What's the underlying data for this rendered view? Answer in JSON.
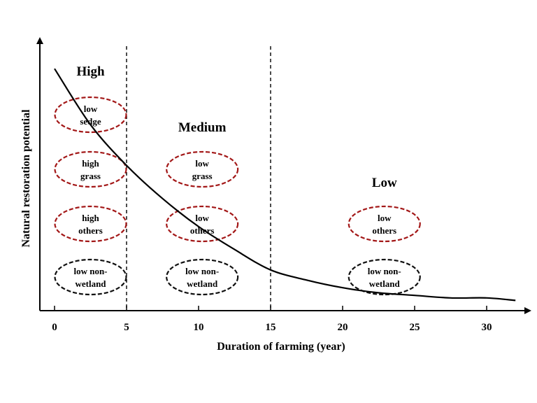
{
  "chart_data": {
    "type": "line",
    "xlabel": "Duration of farming (year)",
    "ylabel": "Natural restoration potential",
    "x_ticks": [
      "0",
      "5",
      "10",
      "15",
      "20",
      "25",
      "30"
    ],
    "boundaries": [
      5,
      15
    ],
    "zones": [
      {
        "label": "High",
        "x_center": 2.5
      },
      {
        "label": "Medium",
        "x_center": 10.25
      },
      {
        "label": "Low",
        "x_center": 22.9
      }
    ],
    "curve": {
      "x": [
        0,
        2.5,
        5,
        7.5,
        10,
        12.5,
        15,
        17.5,
        20,
        22.5,
        25,
        27.5,
        30,
        32
      ],
      "y": [
        0.95,
        0.73,
        0.57,
        0.44,
        0.33,
        0.24,
        0.16,
        0.12,
        0.09,
        0.07,
        0.06,
        0.05,
        0.05,
        0.04
      ]
    },
    "ovals": [
      {
        "line1": "low",
        "line2": "sedge",
        "color": "#a31818",
        "x_center": 2.5,
        "row": 0
      },
      {
        "line1": "high",
        "line2": "grass",
        "color": "#a31818",
        "x_center": 2.5,
        "row": 1
      },
      {
        "line1": "high",
        "line2": "others",
        "color": "#a31818",
        "x_center": 2.5,
        "row": 2
      },
      {
        "line1": "low non-",
        "line2": "wetland",
        "color": "#111111",
        "x_center": 2.5,
        "row": 3
      },
      {
        "line1": "low",
        "line2": "grass",
        "color": "#a31818",
        "x_center": 10.25,
        "row": 1
      },
      {
        "line1": "low",
        "line2": "others",
        "color": "#a31818",
        "x_center": 10.25,
        "row": 2
      },
      {
        "line1": "low non-",
        "line2": "wetland",
        "color": "#111111",
        "x_center": 10.25,
        "row": 3
      },
      {
        "line1": "low",
        "line2": "others",
        "color": "#a31818",
        "x_center": 22.9,
        "row": 2
      },
      {
        "line1": "low non-",
        "line2": "wetland",
        "color": "#111111",
        "x_center": 22.9,
        "row": 3
      }
    ]
  }
}
